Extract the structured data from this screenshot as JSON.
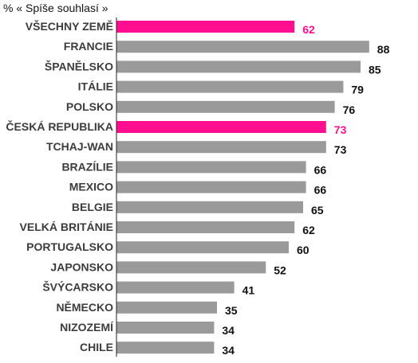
{
  "chart_data": {
    "type": "bar",
    "orientation": "horizontal",
    "title": "% « Spíše souhlasí »",
    "xlabel": "",
    "ylabel": "",
    "xlim": [
      0,
      100
    ],
    "grid": false,
    "categories": [
      "VŠECHNY ZEMĚ",
      "FRANCIE",
      "ŠPANĚLSKO",
      "ITÁLIE",
      "POLSKO",
      "ČESKÁ REPUBLIKA",
      "TCHAJ-WAN",
      "BRAZÍLIE",
      "MEXICO",
      "BELGIE",
      "VELKÁ BRITÁNIE",
      "PORTUGALSKO",
      "JAPONSKO",
      "ŠVÝCARSKO",
      "NĚMECKO",
      "NIZOZEMÍ",
      "CHILE"
    ],
    "values": [
      62,
      88,
      85,
      79,
      76,
      73,
      73,
      66,
      66,
      65,
      62,
      60,
      52,
      41,
      35,
      34,
      34
    ],
    "highlighted": [
      "VŠECHNY ZEMĚ",
      "ČESKÁ REPUBLIKA"
    ],
    "colors": {
      "bar": "#9a9a9a",
      "highlight": "#ff0f8f",
      "label": "#3c3c3c",
      "value": "#111111",
      "axis": "#222222"
    }
  }
}
